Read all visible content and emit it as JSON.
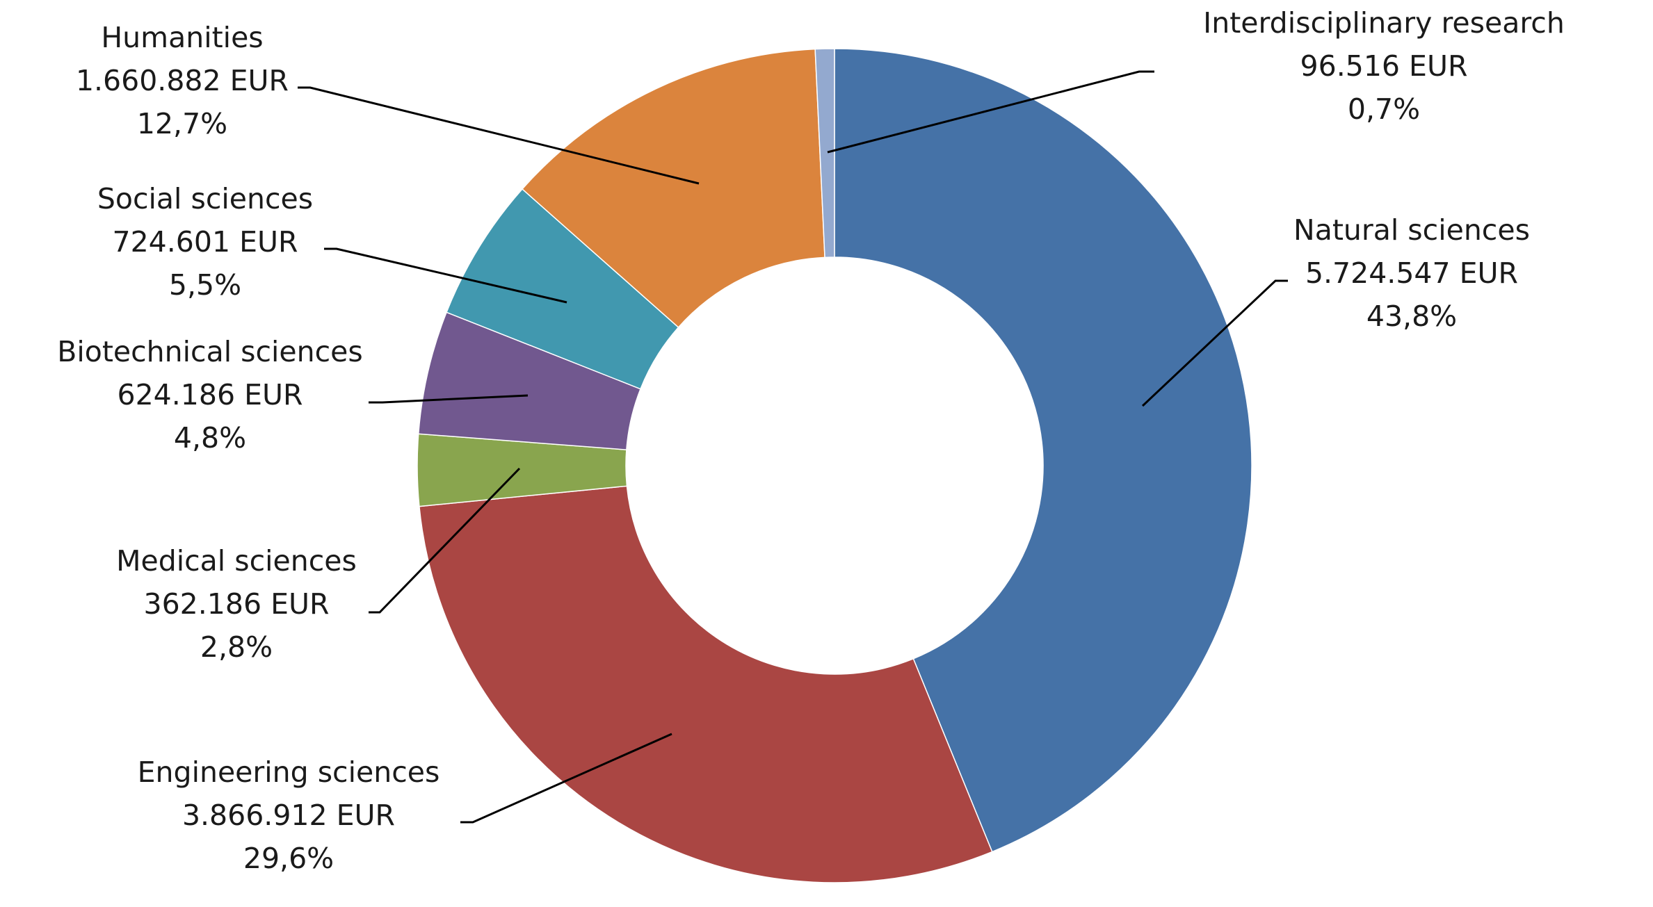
{
  "chart_data": {
    "type": "pie",
    "style": "donut",
    "categories": [
      "Natural sciences",
      "Engineering sciences",
      "Medical sciences",
      "Biotechnical sciences",
      "Social sciences",
      "Humanities",
      "Interdisciplinary research"
    ],
    "values": [
      5724547,
      3866912,
      362186,
      624186,
      724601,
      1660882,
      96516
    ],
    "labels": [
      {
        "name": "Natural sciences",
        "amount": "5.724.547 EUR",
        "percent": "43,8%",
        "color": "#4572A7"
      },
      {
        "name": "Engineering sciences",
        "amount": "3.866.912 EUR",
        "percent": "29,6%",
        "color": "#AA4643"
      },
      {
        "name": "Medical sciences",
        "amount": "362.186 EUR",
        "percent": "2,8%",
        "color": "#89A54E"
      },
      {
        "name": "Biotechnical sciences",
        "amount": "624.186 EUR",
        "percent": "4,8%",
        "color": "#71588F"
      },
      {
        "name": "Social sciences",
        "amount": "724.601 EUR",
        "percent": "5,5%",
        "color": "#4198AF"
      },
      {
        "name": "Humanities",
        "amount": "1.660.882 EUR",
        "percent": "12,7%",
        "color": "#DB843D"
      },
      {
        "name": "Interdisciplinary research",
        "amount": "96.516 EUR",
        "percent": "0,7%",
        "color": "#93A9CF"
      }
    ],
    "start_angle": "12 o'clock",
    "direction": "clockwise",
    "legend": "none"
  }
}
